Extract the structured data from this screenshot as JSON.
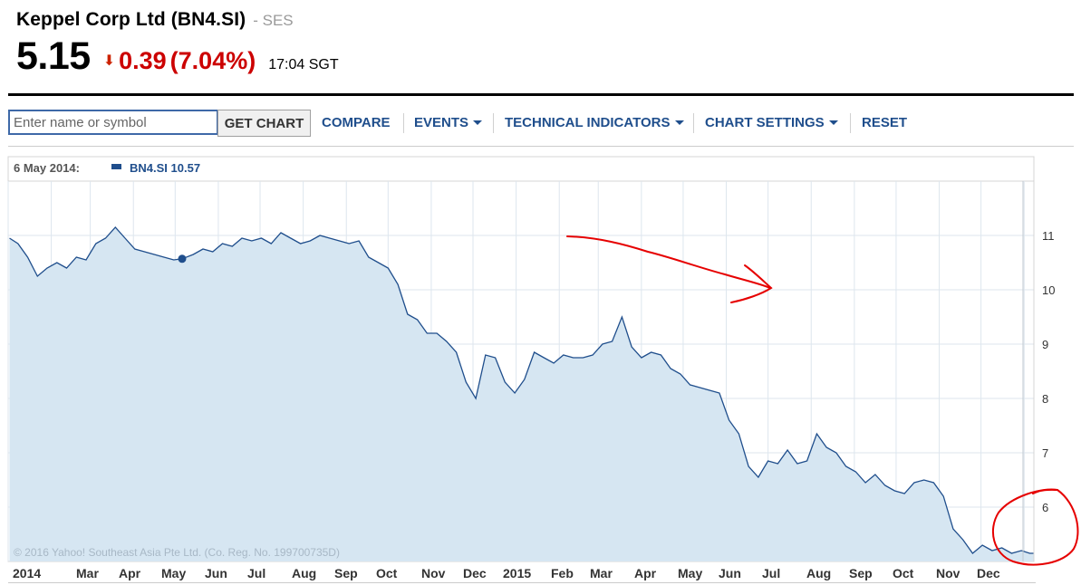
{
  "header": {
    "company": "Keppel Corp Ltd (BN4.SI)",
    "exchange": "- SES",
    "price": "5.15",
    "arrow_icon": "down-arrow-icon",
    "change": "0.39",
    "change_pct": "(7.04%)",
    "time": "17:04 SGT",
    "change_color": "#cc0000"
  },
  "toolbar": {
    "search_placeholder": "Enter name or symbol",
    "get_chart": "GET CHART",
    "compare": "COMPARE",
    "events": "EVENTS",
    "technical_indicators": "TECHNICAL INDICATORS",
    "chart_settings": "CHART SETTINGS",
    "reset": "RESET"
  },
  "tooltip": {
    "date": "6 May 2014:",
    "series": "BN4.SI 10.57"
  },
  "copyright": "© 2016 Yahoo! Southeast Asia Pte Ltd. (Co. Reg. No. 199700735D)",
  "chart_data": {
    "type": "area",
    "series": [
      {
        "name": "BN4.SI",
        "color": "#1f4e8c",
        "fill": "#d6e6f2",
        "x": [
          "2014-01-02",
          "2014-01-08",
          "2014-01-15",
          "2014-01-22",
          "2014-01-29",
          "2014-02-05",
          "2014-02-12",
          "2014-02-19",
          "2014-02-26",
          "2014-03-05",
          "2014-03-12",
          "2014-03-19",
          "2014-03-26",
          "2014-04-02",
          "2014-04-09",
          "2014-04-16",
          "2014-04-23",
          "2014-04-30",
          "2014-05-06",
          "2014-05-14",
          "2014-05-21",
          "2014-05-28",
          "2014-06-04",
          "2014-06-11",
          "2014-06-18",
          "2014-06-25",
          "2014-07-02",
          "2014-07-09",
          "2014-07-16",
          "2014-07-23",
          "2014-07-30",
          "2014-08-06",
          "2014-08-13",
          "2014-08-20",
          "2014-08-27",
          "2014-09-03",
          "2014-09-10",
          "2014-09-17",
          "2014-09-24",
          "2014-10-01",
          "2014-10-08",
          "2014-10-15",
          "2014-10-22",
          "2014-10-29",
          "2014-11-05",
          "2014-11-12",
          "2014-11-19",
          "2014-11-26",
          "2014-12-03",
          "2014-12-10",
          "2014-12-17",
          "2014-12-24",
          "2014-12-31",
          "2015-01-07",
          "2015-01-14",
          "2015-01-21",
          "2015-01-28",
          "2015-02-04",
          "2015-02-11",
          "2015-02-18",
          "2015-02-25",
          "2015-03-04",
          "2015-03-11",
          "2015-03-18",
          "2015-03-25",
          "2015-04-01",
          "2015-04-08",
          "2015-04-15",
          "2015-04-22",
          "2015-04-29",
          "2015-05-06",
          "2015-05-13",
          "2015-05-20",
          "2015-05-27",
          "2015-06-03",
          "2015-06-10",
          "2015-06-17",
          "2015-06-24",
          "2015-07-01",
          "2015-07-08",
          "2015-07-15",
          "2015-07-22",
          "2015-07-29",
          "2015-08-05",
          "2015-08-12",
          "2015-08-19",
          "2015-08-26",
          "2015-09-02",
          "2015-09-09",
          "2015-09-16",
          "2015-09-23",
          "2015-09-30",
          "2015-10-07",
          "2015-10-14",
          "2015-10-21",
          "2015-10-28",
          "2015-11-04",
          "2015-11-11",
          "2015-11-18",
          "2015-11-25",
          "2015-12-02",
          "2015-12-09",
          "2015-12-16",
          "2015-12-23",
          "2015-12-30",
          "2016-01-05",
          "2016-01-08"
        ],
        "y": [
          10.95,
          10.85,
          10.6,
          10.25,
          10.4,
          10.5,
          10.4,
          10.6,
          10.55,
          10.85,
          10.95,
          11.15,
          10.95,
          10.75,
          10.7,
          10.65,
          10.6,
          10.55,
          10.57,
          10.65,
          10.75,
          10.7,
          10.85,
          10.8,
          10.95,
          10.9,
          10.95,
          10.85,
          11.05,
          10.95,
          10.85,
          10.9,
          11.0,
          10.95,
          10.9,
          10.85,
          10.9,
          10.6,
          10.5,
          10.4,
          10.1,
          9.55,
          9.45,
          9.2,
          9.2,
          9.05,
          8.85,
          8.3,
          8.0,
          8.8,
          8.75,
          8.3,
          8.1,
          8.35,
          8.85,
          8.75,
          8.65,
          8.8,
          8.75,
          8.75,
          8.8,
          9.0,
          9.05,
          9.5,
          8.95,
          8.75,
          8.85,
          8.8,
          8.55,
          8.45,
          8.25,
          8.2,
          8.15,
          8.1,
          7.6,
          7.35,
          6.75,
          6.55,
          6.85,
          6.8,
          7.05,
          6.8,
          6.85,
          7.35,
          7.1,
          7.0,
          6.75,
          6.65,
          6.45,
          6.6,
          6.4,
          6.3,
          6.25,
          6.45,
          6.5,
          6.45,
          6.2,
          5.6,
          5.4,
          5.15,
          5.3,
          5.2,
          5.25,
          5.15,
          5.2,
          5.15,
          5.15
        ]
      }
    ],
    "marker": {
      "x": "2014-05-06",
      "y": 10.57
    },
    "xlabels": [
      "2014",
      "Mar",
      "Apr",
      "May",
      "Jun",
      "Jul",
      "Aug",
      "Sep",
      "Oct",
      "Nov",
      "Dec",
      "2015",
      "Feb",
      "Mar",
      "Apr",
      "May",
      "Jun",
      "Jul",
      "Aug",
      "Sep",
      "Oct",
      "Nov",
      "Dec"
    ],
    "yticks": [
      6,
      7,
      8,
      9,
      10,
      11
    ],
    "ylim": [
      5.0,
      12.0
    ],
    "xlim": [
      "2014-01-01",
      "2016-01-08"
    ],
    "grid": true,
    "annotations": [
      {
        "kind": "arrow",
        "color": "#e60000"
      },
      {
        "kind": "circle",
        "color": "#e60000"
      }
    ]
  }
}
